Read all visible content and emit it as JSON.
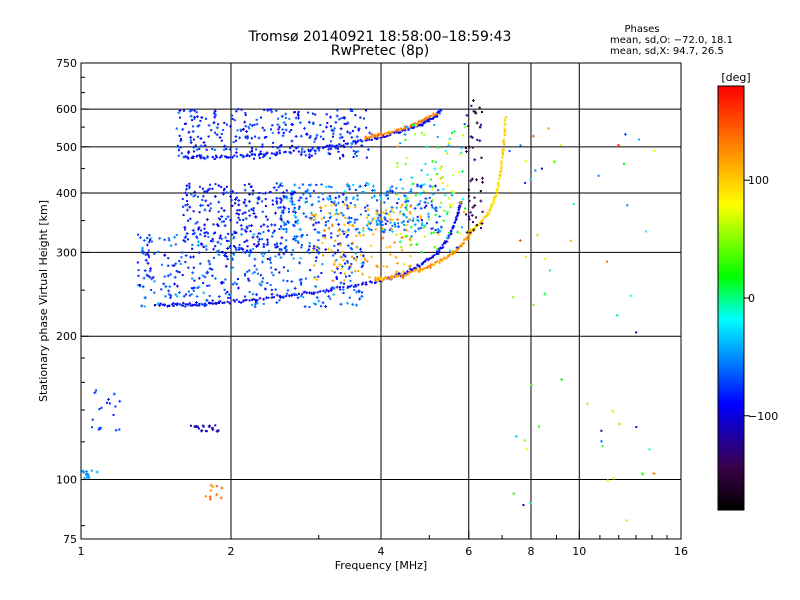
{
  "chart_data": {
    "type": "scatter",
    "title": "Tromsø 20140921 18:58:00–18:59:43",
    "subtitle": "RwPretec (8p)",
    "side_info": {
      "heading": "Phases",
      "line1": "mean, sd,O: −72.0, 18.1",
      "line2": "mean, sd,X:  94.7, 26.5"
    },
    "xlabel": "Frequency [MHz]",
    "ylabel": "Stationary phase Virtual Height [km]",
    "x_scale": "log",
    "y_scale": "log",
    "xlim": [
      1,
      16
    ],
    "ylim": [
      75,
      750
    ],
    "x_ticks": [
      1,
      2,
      4,
      6,
      8,
      10,
      16
    ],
    "x_tick_labels": [
      "1",
      "2",
      "4",
      "6",
      "8",
      "10",
      "16"
    ],
    "y_ticks": [
      75,
      100,
      200,
      300,
      400,
      500,
      600,
      750
    ],
    "y_tick_labels": [
      "75",
      "100",
      "200",
      "300",
      "400",
      "500",
      "600",
      "750"
    ],
    "grid": true,
    "colorbar": {
      "label": "[deg]",
      "range": [
        -180,
        180
      ],
      "ticks": [
        100,
        0,
        -100
      ],
      "tick_labels": [
        "100",
        "0",
        "−100"
      ],
      "colors": [
        "#000000",
        "#3a0048",
        "#0000ff",
        "#00ffff",
        "#00ff00",
        "#ffff00",
        "#ff0000"
      ]
    },
    "series": [
      {
        "kind": "curve",
        "phase": -95,
        "x": [
          1.4,
          1.55,
          1.7,
          1.9,
          2.2,
          2.6,
          3.0,
          3.5,
          4.0,
          4.4,
          4.8,
          5.2,
          5.5,
          5.7,
          5.8
        ],
        "y": [
          232,
          233,
          233,
          235,
          238,
          243,
          248,
          255,
          262,
          270,
          282,
          300,
          325,
          360,
          385
        ]
      },
      {
        "kind": "curve",
        "phase": 120,
        "x": [
          3.9,
          4.2,
          4.6,
          5.0,
          5.4,
          5.7,
          5.95,
          6.1
        ],
        "y": [
          262,
          266,
          272,
          280,
          292,
          305,
          320,
          335
        ]
      },
      {
        "kind": "curve",
        "phase": 95,
        "x": [
          6.0,
          6.3,
          6.6,
          6.8,
          6.95,
          7.05,
          7.1
        ],
        "y": [
          330,
          345,
          365,
          395,
          440,
          500,
          580
        ]
      },
      {
        "kind": "curve",
        "phase": -90,
        "x": [
          1.6,
          1.8,
          2.1,
          2.5,
          3.0,
          3.5,
          4.0,
          4.4,
          4.8,
          5.1,
          5.3
        ],
        "y": [
          475,
          475,
          478,
          485,
          495,
          510,
          525,
          540,
          555,
          575,
          600
        ]
      },
      {
        "kind": "curve",
        "phase": 130,
        "x": [
          3.7,
          4.0,
          4.4,
          4.8,
          5.2
        ],
        "y": [
          520,
          530,
          545,
          565,
          590
        ]
      },
      {
        "kind": "cloud",
        "phase": -70,
        "spread": 45,
        "x": [
          1.3,
          3.7
        ],
        "y": [
          230,
          330
        ],
        "n": 420
      },
      {
        "kind": "cloud",
        "phase": -85,
        "spread": 40,
        "x": [
          1.6,
          2.7
        ],
        "y": [
          300,
          420
        ],
        "n": 260
      },
      {
        "kind": "cloud",
        "phase": -60,
        "spread": 50,
        "x": [
          2.5,
          5.3
        ],
        "y": [
          330,
          420
        ],
        "n": 300
      },
      {
        "kind": "cloud",
        "phase": 110,
        "spread": 35,
        "x": [
          2.9,
          4.6
        ],
        "y": [
          260,
          380
        ],
        "n": 140
      },
      {
        "kind": "cloud",
        "phase": -80,
        "spread": 40,
        "x": [
          1.55,
          3.8
        ],
        "y": [
          470,
          600
        ],
        "n": 300
      },
      {
        "kind": "cloud",
        "phase": 20,
        "spread": 160,
        "x": [
          4.3,
          5.9
        ],
        "y": [
          300,
          560
        ],
        "n": 120
      },
      {
        "kind": "cloud",
        "phase": -140,
        "spread": 60,
        "x": [
          5.9,
          6.4
        ],
        "y": [
          330,
          630
        ],
        "n": 50
      },
      {
        "kind": "cloud",
        "phase": -75,
        "spread": 20,
        "x": [
          1.05,
          1.2
        ],
        "y": [
          125,
          155
        ],
        "n": 18
      },
      {
        "kind": "cloud",
        "phase": -45,
        "spread": 15,
        "x": [
          1.0,
          1.08
        ],
        "y": [
          100,
          105
        ],
        "n": 14
      },
      {
        "kind": "cloud",
        "phase": -110,
        "spread": 15,
        "x": [
          1.65,
          1.9
        ],
        "y": [
          126,
          130
        ],
        "n": 22
      },
      {
        "kind": "cloud",
        "phase": 135,
        "spread": 20,
        "x": [
          1.78,
          1.92
        ],
        "y": [
          90,
          98
        ],
        "n": 10
      },
      {
        "kind": "cloud",
        "phase": 20,
        "spread": 180,
        "x": [
          7.2,
          14.5
        ],
        "y": [
          78,
          560
        ],
        "n": 55
      }
    ]
  }
}
